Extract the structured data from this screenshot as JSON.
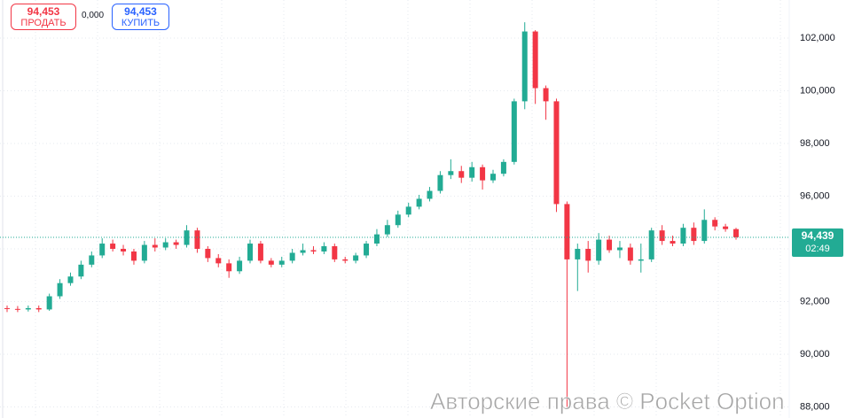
{
  "trade_panel": {
    "sell_price": "94,453",
    "sell_label": "ПРОДАТЬ",
    "spread": "0,000",
    "buy_price": "94,453",
    "buy_label": "КУПИТЬ"
  },
  "watermark": "Авторские права © Pocket Option",
  "chart_data": {
    "type": "candlestick",
    "up_color": "#22ab94",
    "down_color": "#f23645",
    "grid": true,
    "ylim": [
      87580,
      103445
    ],
    "yticks": [
      {
        "value": 88000,
        "label": "88,000"
      },
      {
        "value": 90000,
        "label": "90,000"
      },
      {
        "value": 92000,
        "label": "92,000"
      },
      {
        "value": 94000,
        "label": "94,000"
      },
      {
        "value": 96000,
        "label": "96,000"
      },
      {
        "value": 98000,
        "label": "98,000"
      },
      {
        "value": 100000,
        "label": "100,000"
      },
      {
        "value": 102000,
        "label": "102,000"
      }
    ],
    "last_price": {
      "value": 94439,
      "label": "94,439"
    },
    "timer": "02:49",
    "open": [
      91750,
      91720,
      91700,
      91750,
      91700,
      92200,
      92700,
      92950,
      93400,
      93750,
      94200,
      94000,
      93900,
      93550,
      94150,
      94050,
      94250,
      94150,
      94700,
      94000,
      93650,
      93450,
      93150,
      93550,
      94200,
      93550,
      93400,
      93550,
      93850,
      93950,
      93900,
      94100,
      93600,
      93550,
      93750,
      94200,
      94550,
      94900,
      95300,
      95600,
      95900,
      96200,
      96800,
      96950,
      96700,
      97100,
      96600,
      96850,
      97300,
      99600,
      102250,
      100100,
      99600,
      95700,
      93600,
      94000,
      93550,
      94350,
      93950,
      94050,
      93550,
      93600,
      94700,
      94300,
      94200,
      94800,
      94300,
      95100,
      94850,
      94750
    ],
    "high": [
      91850,
      91830,
      91850,
      91850,
      92300,
      92850,
      93100,
      93550,
      93900,
      94400,
      94350,
      94150,
      94000,
      94300,
      94400,
      94400,
      94350,
      94900,
      94800,
      94100,
      93800,
      93600,
      93700,
      94350,
      94300,
      93650,
      93700,
      94000,
      94200,
      94100,
      94250,
      94200,
      93700,
      93850,
      94300,
      94750,
      95100,
      95450,
      95750,
      96050,
      96350,
      96950,
      97400,
      97150,
      97300,
      97200,
      97000,
      97400,
      99700,
      102600,
      102300,
      100200,
      99700,
      95800,
      94200,
      94300,
      94600,
      94500,
      94300,
      94200,
      94200,
      94800,
      94900,
      94500,
      94950,
      95000,
      95500,
      95200,
      94950,
      94800
    ],
    "low": [
      91600,
      91600,
      91620,
      91600,
      91650,
      92100,
      92600,
      92850,
      93300,
      93650,
      93900,
      93750,
      93400,
      93450,
      93900,
      93950,
      94000,
      94050,
      93850,
      93500,
      93300,
      92900,
      93050,
      93450,
      93450,
      93300,
      93300,
      93450,
      93750,
      93800,
      93800,
      93500,
      93450,
      93450,
      93650,
      94100,
      94450,
      94800,
      95200,
      95500,
      95800,
      96100,
      96650,
      96500,
      96550,
      96250,
      96500,
      96750,
      97200,
      99300,
      99500,
      98900,
      95400,
      88000,
      92400,
      93100,
      93400,
      93850,
      93650,
      93400,
      93100,
      93500,
      94150,
      94100,
      94100,
      94150,
      94200,
      94700,
      94650,
      94350
    ],
    "close": [
      91720,
      91700,
      91750,
      91700,
      92200,
      92700,
      92950,
      93400,
      93750,
      94200,
      94000,
      93900,
      93550,
      94150,
      94050,
      94250,
      94150,
      94700,
      94000,
      93650,
      93450,
      93150,
      93550,
      94200,
      93550,
      93400,
      93550,
      93850,
      93950,
      93900,
      94100,
      93600,
      93550,
      93750,
      94200,
      94550,
      94900,
      95300,
      95600,
      95900,
      96200,
      96800,
      96950,
      96700,
      97100,
      96600,
      96850,
      97300,
      99600,
      102250,
      100100,
      99600,
      95700,
      93600,
      94000,
      93550,
      94350,
      93950,
      94050,
      93550,
      93600,
      94700,
      94300,
      94200,
      94800,
      94300,
      95100,
      94850,
      94750,
      94440
    ]
  }
}
